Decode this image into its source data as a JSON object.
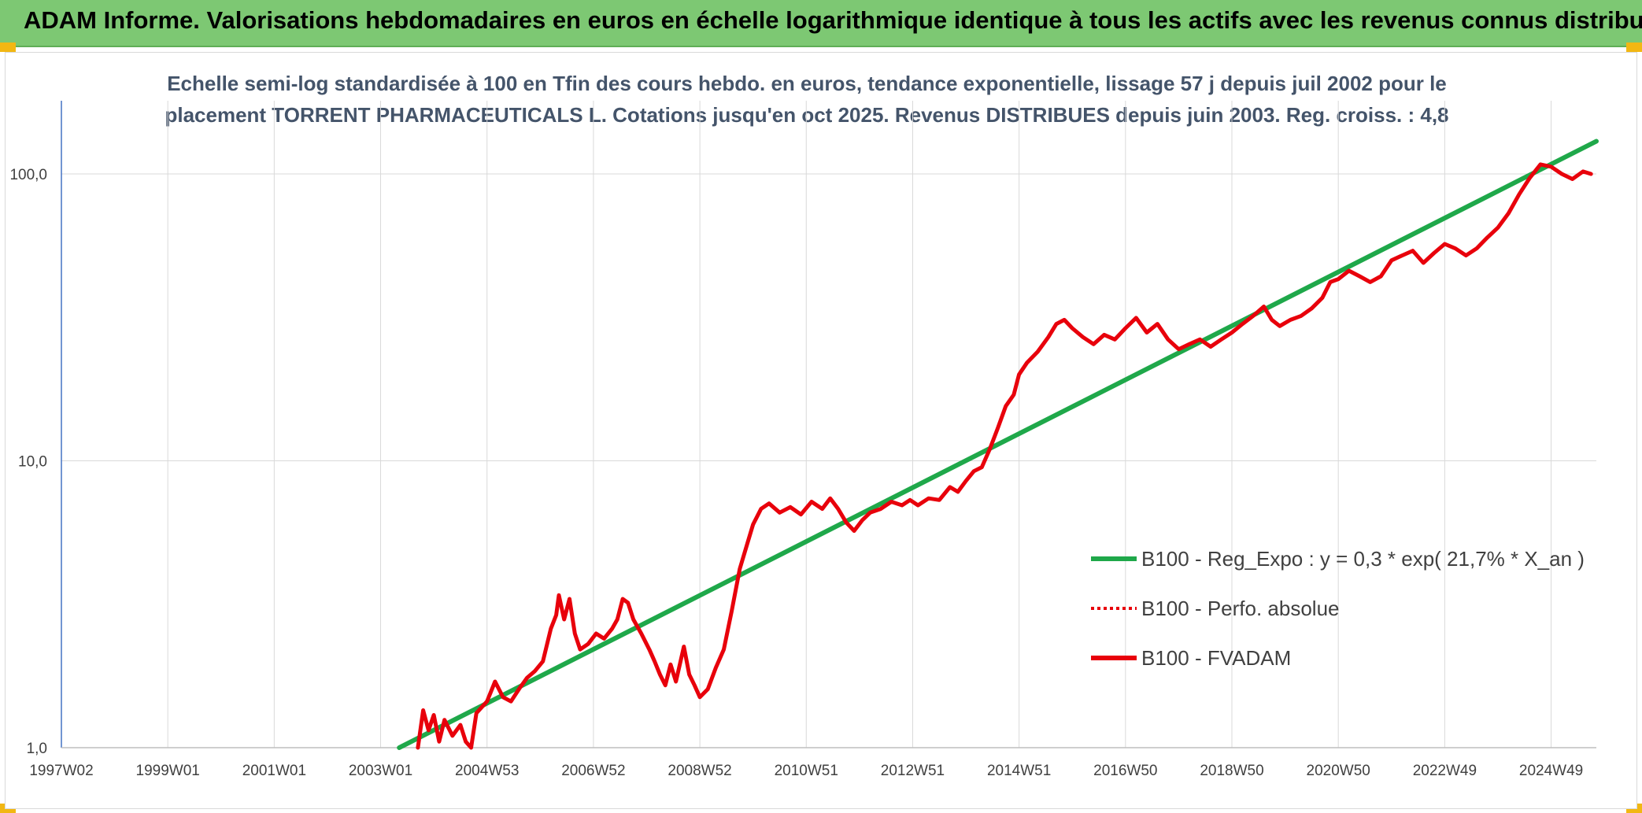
{
  "banner": {
    "title": "ADAM Informe. Valorisations hebdomadaires en euros en échelle logarithmique identique à tous les actifs avec les revenus connus distribués"
  },
  "colors": {
    "banner_bg": "#7dc873",
    "trend": "#1fa84a",
    "fvadam": "#e8000b",
    "perfo": "#e8000b",
    "title_text": "#44546a",
    "grid": "#d9d9d9"
  },
  "chart_data": {
    "type": "line",
    "title": "Echelle semi-log standardisée à 100 en Tfin des cours hebdo. en euros, tendance exponentielle, lissage 57 j depuis juil 2002 pour le placement TORRENT PHARMACEUTICALS L. Cotations jusqu'en oct 2025. Revenus DISTRIBUES depuis juin 2003. Reg. croiss. : 4,8",
    "title_lines": [
      "Echelle semi-log standardisée à 100 en Tfin des cours hebdo. en euros, tendance exponentielle, lissage 57 j depuis juil 2002 pour le",
      "placement TORRENT PHARMACEUTICALS L. Cotations jusqu'en oct 2025. Revenus DISTRIBUES depuis juin 2003. Reg. croiss. : 4,8"
    ],
    "y_scale": "log",
    "ylim": [
      1,
      180
    ],
    "xlim": [
      1997.0,
      2025.85
    ],
    "y_ticks": [
      {
        "value": 1,
        "label": "1,0"
      },
      {
        "value": 10,
        "label": "10,0"
      },
      {
        "value": 100,
        "label": "100,0"
      }
    ],
    "x_ticks": [
      {
        "value": 1997.0,
        "label": "1997W02"
      },
      {
        "value": 1999.0,
        "label": "1999W01"
      },
      {
        "value": 2001.0,
        "label": "2001W01"
      },
      {
        "value": 2003.0,
        "label": "2003W01"
      },
      {
        "value": 2005.0,
        "label": "2004W53"
      },
      {
        "value": 2007.0,
        "label": "2006W52"
      },
      {
        "value": 2009.0,
        "label": "2008W52"
      },
      {
        "value": 2011.0,
        "label": "2010W51"
      },
      {
        "value": 2013.0,
        "label": "2012W51"
      },
      {
        "value": 2015.0,
        "label": "2014W51"
      },
      {
        "value": 2017.0,
        "label": "2016W50"
      },
      {
        "value": 2019.0,
        "label": "2018W50"
      },
      {
        "value": 2021.0,
        "label": "2020W50"
      },
      {
        "value": 2023.0,
        "label": "2022W49"
      },
      {
        "value": 2025.0,
        "label": "2024W49"
      }
    ],
    "grid": true,
    "legend_position": "right",
    "series": [
      {
        "name": "B100 - Reg_Expo : y = 0,3 * exp( 21,7% *  X_an )",
        "color": "#1fa84a",
        "style": "solid",
        "points": [
          [
            2003.35,
            0.99
          ],
          [
            2025.85,
            130
          ]
        ]
      },
      {
        "name": "B100 - Perfo. absolue",
        "color": "#e8000b",
        "style": "dotted",
        "points": []
      },
      {
        "name": "B100 - FVADAM",
        "color": "#e8000b",
        "style": "solid",
        "points": [
          [
            2003.7,
            1.0
          ],
          [
            2003.8,
            1.35
          ],
          [
            2003.9,
            1.15
          ],
          [
            2004.0,
            1.3
          ],
          [
            2004.1,
            1.05
          ],
          [
            2004.2,
            1.25
          ],
          [
            2004.35,
            1.1
          ],
          [
            2004.5,
            1.2
          ],
          [
            2004.6,
            1.05
          ],
          [
            2004.7,
            1.0
          ],
          [
            2004.8,
            1.32
          ],
          [
            2005.0,
            1.45
          ],
          [
            2005.15,
            1.7
          ],
          [
            2005.3,
            1.5
          ],
          [
            2005.45,
            1.45
          ],
          [
            2005.6,
            1.6
          ],
          [
            2005.75,
            1.75
          ],
          [
            2005.9,
            1.85
          ],
          [
            2006.05,
            2.0
          ],
          [
            2006.2,
            2.6
          ],
          [
            2006.3,
            2.9
          ],
          [
            2006.35,
            3.4
          ],
          [
            2006.45,
            2.8
          ],
          [
            2006.55,
            3.3
          ],
          [
            2006.65,
            2.5
          ],
          [
            2006.75,
            2.2
          ],
          [
            2006.9,
            2.3
          ],
          [
            2007.05,
            2.5
          ],
          [
            2007.2,
            2.4
          ],
          [
            2007.35,
            2.6
          ],
          [
            2007.45,
            2.8
          ],
          [
            2007.55,
            3.3
          ],
          [
            2007.65,
            3.2
          ],
          [
            2007.75,
            2.8
          ],
          [
            2007.9,
            2.5
          ],
          [
            2008.05,
            2.2
          ],
          [
            2008.15,
            2.0
          ],
          [
            2008.25,
            1.8
          ],
          [
            2008.35,
            1.65
          ],
          [
            2008.45,
            1.95
          ],
          [
            2008.55,
            1.7
          ],
          [
            2008.7,
            2.25
          ],
          [
            2008.8,
            1.8
          ],
          [
            2008.9,
            1.65
          ],
          [
            2009.0,
            1.5
          ],
          [
            2009.15,
            1.6
          ],
          [
            2009.3,
            1.9
          ],
          [
            2009.45,
            2.2
          ],
          [
            2009.6,
            3.0
          ],
          [
            2009.75,
            4.2
          ],
          [
            2009.9,
            5.2
          ],
          [
            2010.0,
            6.0
          ],
          [
            2010.15,
            6.8
          ],
          [
            2010.3,
            7.1
          ],
          [
            2010.5,
            6.6
          ],
          [
            2010.7,
            6.9
          ],
          [
            2010.9,
            6.5
          ],
          [
            2011.1,
            7.2
          ],
          [
            2011.3,
            6.8
          ],
          [
            2011.45,
            7.4
          ],
          [
            2011.6,
            6.8
          ],
          [
            2011.75,
            6.1
          ],
          [
            2011.9,
            5.7
          ],
          [
            2012.05,
            6.2
          ],
          [
            2012.2,
            6.6
          ],
          [
            2012.4,
            6.8
          ],
          [
            2012.6,
            7.2
          ],
          [
            2012.8,
            7.0
          ],
          [
            2012.95,
            7.3
          ],
          [
            2013.1,
            7.0
          ],
          [
            2013.3,
            7.4
          ],
          [
            2013.5,
            7.3
          ],
          [
            2013.7,
            8.1
          ],
          [
            2013.85,
            7.8
          ],
          [
            2014.0,
            8.5
          ],
          [
            2014.15,
            9.2
          ],
          [
            2014.3,
            9.5
          ],
          [
            2014.45,
            11.0
          ],
          [
            2014.6,
            13.0
          ],
          [
            2014.75,
            15.5
          ],
          [
            2014.9,
            17.0
          ],
          [
            2015.0,
            20.0
          ],
          [
            2015.15,
            22.0
          ],
          [
            2015.35,
            24.0
          ],
          [
            2015.55,
            27.0
          ],
          [
            2015.7,
            30.0
          ],
          [
            2015.85,
            31.0
          ],
          [
            2016.0,
            29.0
          ],
          [
            2016.2,
            27.0
          ],
          [
            2016.4,
            25.5
          ],
          [
            2016.6,
            27.5
          ],
          [
            2016.8,
            26.5
          ],
          [
            2017.0,
            29.0
          ],
          [
            2017.2,
            31.5
          ],
          [
            2017.4,
            28.0
          ],
          [
            2017.6,
            30.0
          ],
          [
            2017.8,
            26.5
          ],
          [
            2018.0,
            24.5
          ],
          [
            2018.2,
            25.5
          ],
          [
            2018.4,
            26.5
          ],
          [
            2018.6,
            25.0
          ],
          [
            2018.8,
            26.5
          ],
          [
            2019.0,
            28.0
          ],
          [
            2019.2,
            30.0
          ],
          [
            2019.4,
            32.0
          ],
          [
            2019.6,
            34.5
          ],
          [
            2019.75,
            31.0
          ],
          [
            2019.9,
            29.5
          ],
          [
            2020.1,
            31.0
          ],
          [
            2020.3,
            32.0
          ],
          [
            2020.5,
            34.0
          ],
          [
            2020.7,
            37.0
          ],
          [
            2020.85,
            42.0
          ],
          [
            2021.0,
            43.0
          ],
          [
            2021.2,
            46.0
          ],
          [
            2021.4,
            44.0
          ],
          [
            2021.6,
            42.0
          ],
          [
            2021.8,
            44.0
          ],
          [
            2022.0,
            50.0
          ],
          [
            2022.2,
            52.0
          ],
          [
            2022.4,
            54.0
          ],
          [
            2022.6,
            49.0
          ],
          [
            2022.8,
            53.0
          ],
          [
            2023.0,
            57.0
          ],
          [
            2023.2,
            55.0
          ],
          [
            2023.4,
            52.0
          ],
          [
            2023.6,
            55.0
          ],
          [
            2023.8,
            60.0
          ],
          [
            2024.0,
            65.0
          ],
          [
            2024.2,
            73.0
          ],
          [
            2024.4,
            85.0
          ],
          [
            2024.6,
            97.0
          ],
          [
            2024.8,
            108.0
          ],
          [
            2025.0,
            106.0
          ],
          [
            2025.2,
            100.0
          ],
          [
            2025.4,
            96.0
          ],
          [
            2025.6,
            102.0
          ],
          [
            2025.75,
            100.0
          ]
        ]
      }
    ]
  }
}
